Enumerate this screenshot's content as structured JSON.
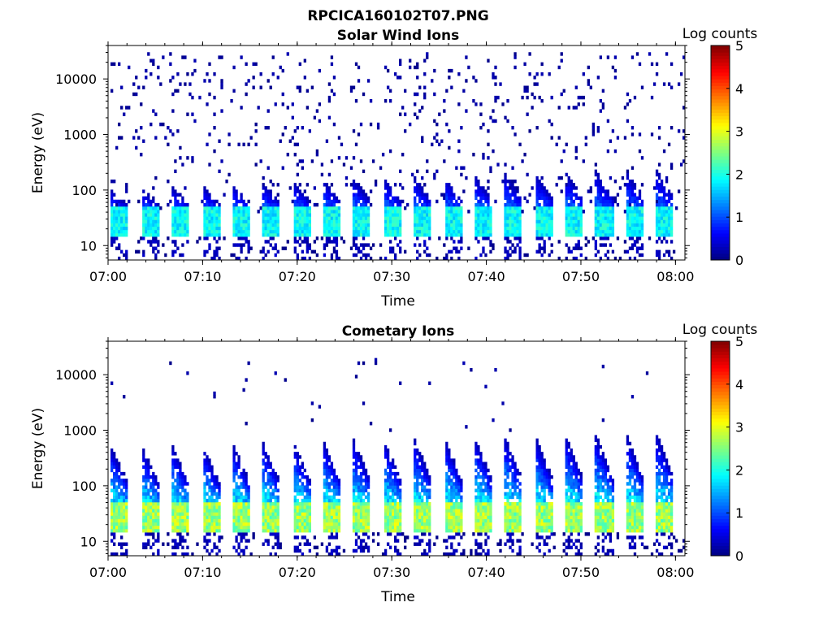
{
  "figure": {
    "title": "RPCICA160102T07.PNG"
  },
  "chart_data": [
    {
      "type": "heatmap",
      "title": "Solar Wind Ions",
      "xlabel": "Time",
      "ylabel": "Energy (eV)",
      "x_range": [
        "07:00",
        "08:01"
      ],
      "x_ticks": [
        "07:00",
        "07:10",
        "07:20",
        "07:30",
        "07:40",
        "07:50",
        "08:00"
      ],
      "y_scale": "log",
      "y_range": [
        5.5,
        40000
      ],
      "y_ticks": [
        10,
        100,
        1000,
        10000
      ],
      "y_tick_labels": [
        "10",
        "100",
        "1000",
        "10000"
      ],
      "colorbar": {
        "label": "Log counts",
        "range": [
          0,
          5
        ],
        "ticks": [
          "0",
          "1",
          "2",
          "3",
          "4",
          "5"
        ],
        "colormap": "jet"
      },
      "pattern": {
        "scan_period_min": 3.2,
        "peak_energy_ev": 30,
        "peak_log_counts": 2.2,
        "upper_energy_ev_early": 100,
        "upper_energy_ev_late": 250,
        "sparse_background_ev": [
          40,
          30000
        ]
      }
    },
    {
      "type": "heatmap",
      "title": "Cometary Ions",
      "xlabel": "Time",
      "ylabel": "Energy (eV)",
      "x_range": [
        "07:00",
        "08:01"
      ],
      "x_ticks": [
        "07:00",
        "07:10",
        "07:20",
        "07:30",
        "07:40",
        "07:50",
        "08:00"
      ],
      "y_scale": "log",
      "y_range": [
        5.5,
        40000
      ],
      "y_ticks": [
        10,
        100,
        1000,
        10000
      ],
      "y_tick_labels": [
        "10",
        "100",
        "1000",
        "10000"
      ],
      "colorbar": {
        "label": "Log counts",
        "range": [
          0,
          5
        ],
        "ticks": [
          "0",
          "1",
          "2",
          "3",
          "4",
          "5"
        ],
        "colormap": "jet"
      },
      "pattern": {
        "scan_period_min": 3.2,
        "peak_energy_ev": 30,
        "peak_log_counts": 3.1,
        "upper_energy_ev_early": 500,
        "upper_energy_ev_late": 1000,
        "sparse_background_ev": [
          1000,
          20000
        ]
      }
    }
  ]
}
